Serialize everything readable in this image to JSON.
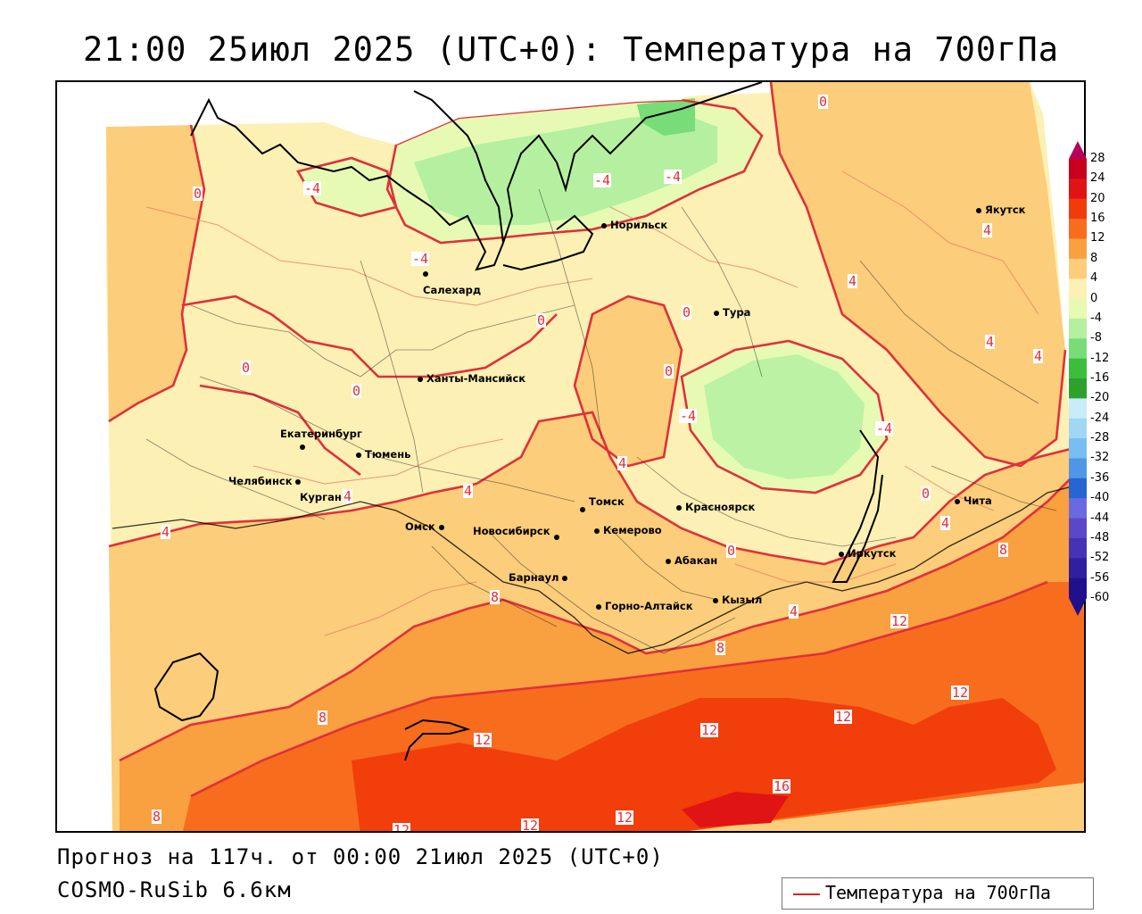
{
  "title": "21:00 25июл 2025 (UTC+0): Температура на 700гПа",
  "footer": {
    "forecast": "Прогноз на 117ч. от 00:00 21июл 2025 (UTC+0)",
    "model": "COSMO-RuSib 6.6км"
  },
  "legend": {
    "label": "Температура на 700гПа",
    "line_color": "#e02020"
  },
  "colorbar": {
    "labels": [
      "28",
      "24",
      "20",
      "16",
      "12",
      "8",
      "4",
      "0",
      "-4",
      "-8",
      "-12",
      "-16",
      "-20",
      "-24",
      "-28",
      "-32",
      "-36",
      "-40",
      "-44",
      "-48",
      "-52",
      "-56",
      "-60"
    ],
    "colors": [
      "#b4005a",
      "#c8001e",
      "#e01414",
      "#f03c0a",
      "#f86c1e",
      "#f9a040",
      "#fccd7a",
      "#fdf0b4",
      "#e6fab4",
      "#b4f0a0",
      "#78dc78",
      "#3cbe3c",
      "#2ea02e",
      "#c8ecf8",
      "#a0d8f4",
      "#78bef0",
      "#5096e6",
      "#2864d2",
      "#6a6ae0",
      "#5a48c8",
      "#4632b4",
      "#3020a0",
      "#20108c"
    ]
  },
  "cities": [
    {
      "name": "Якутск"
    },
    {
      "name": "Норильск"
    },
    {
      "name": "Салехард"
    },
    {
      "name": "Тура"
    },
    {
      "name": "Ханты-Мансийск"
    },
    {
      "name": "Екатеринбург"
    },
    {
      "name": "Тюмень"
    },
    {
      "name": "Челябинск"
    },
    {
      "name": "Курган"
    },
    {
      "name": "Омск"
    },
    {
      "name": "Новосибирск"
    },
    {
      "name": "Томск"
    },
    {
      "name": "Кемерово"
    },
    {
      "name": "Красноярск"
    },
    {
      "name": "Абакан"
    },
    {
      "name": "Барнаул"
    },
    {
      "name": "Горно-Алтайск"
    },
    {
      "name": "Кызыл"
    },
    {
      "name": "Иркутск"
    },
    {
      "name": "Чита"
    }
  ],
  "contour_labels": [
    "0",
    "-4",
    "-4",
    "-4",
    "-4",
    "0",
    "0",
    "0",
    "0",
    "0",
    "-4",
    "0",
    "4",
    "4",
    "4",
    "4",
    "4",
    "4",
    "4",
    "-4",
    "0",
    "4",
    "8",
    "8",
    "8",
    "8",
    "12",
    "12",
    "12",
    "12",
    "12",
    "16",
    "12",
    "12",
    "12",
    "8",
    "0",
    "4",
    "4"
  ]
}
